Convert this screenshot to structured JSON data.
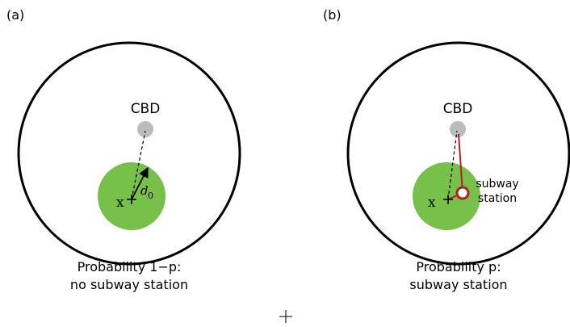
{
  "panels": [
    {
      "label": "(a)",
      "cbd": "CBD",
      "point": "x",
      "distance": {
        "symbol": "d",
        "subscript": "0"
      },
      "caption": [
        "Probability 1−p:",
        "no subway station"
      ]
    },
    {
      "label": "(b)",
      "cbd": "CBD",
      "point": "x",
      "station": [
        "subway",
        "station"
      ],
      "caption": [
        "Probability p:",
        "subway station"
      ]
    }
  ]
}
